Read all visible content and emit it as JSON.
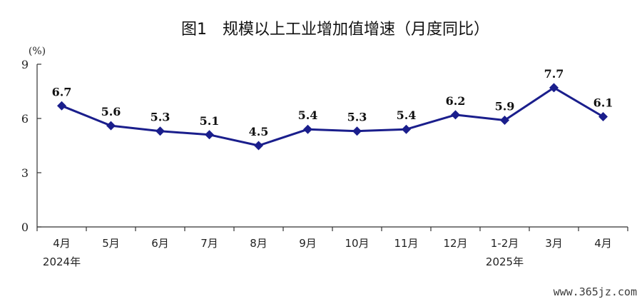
{
  "watermark": "www.365jz.com",
  "chart_data": {
    "type": "line",
    "title": "图1　规模以上工业增加值增速（月度同比）",
    "ylabel": "(%)",
    "xlabel": "",
    "ylim": [
      0,
      9
    ],
    "yticks": [
      "0",
      "3",
      "6",
      "9"
    ],
    "categories": [
      "4月",
      "5月",
      "6月",
      "7月",
      "8月",
      "9月",
      "10月",
      "11月",
      "12月",
      "1-2月",
      "3月",
      "4月"
    ],
    "year_labels": [
      {
        "category_index": 0,
        "text": "2024年"
      },
      {
        "category_index": 9,
        "text": "2025年"
      }
    ],
    "series": [
      {
        "values": [
          6.7,
          5.6,
          5.3,
          5.1,
          4.5,
          5.4,
          5.3,
          5.4,
          6.2,
          5.9,
          7.7,
          6.1
        ],
        "data_labels": [
          "6.7",
          "5.6",
          "5.3",
          "5.1",
          "4.5",
          "5.4",
          "5.3",
          "5.4",
          "6.2",
          "5.9",
          "7.7",
          "6.1"
        ]
      }
    ],
    "line_color": "#1a1e8c",
    "axis_color": "#333333",
    "grid": false,
    "legend": "none"
  }
}
